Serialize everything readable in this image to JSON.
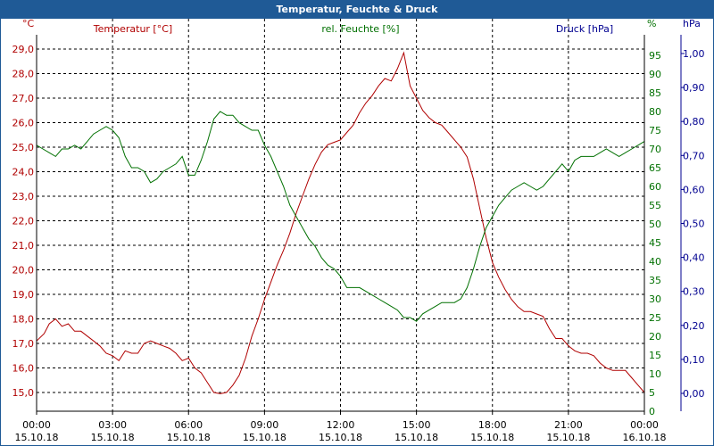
{
  "window": {
    "title": "Temperatur, Feuchte & Druck"
  },
  "chart_data": {
    "type": "line",
    "title": "Temperatur, Feuchte & Druck",
    "grid": true,
    "axes": {
      "left": {
        "label": "Temperatur [°C]",
        "unit": "°C",
        "range": [
          14.5,
          29.5
        ],
        "ticks": [
          "15,0",
          "16,0",
          "17,0",
          "18,0",
          "19,0",
          "20,0",
          "21,0",
          "22,0",
          "23,0",
          "24,0",
          "25,0",
          "26,0",
          "27,0",
          "28,0",
          "29,0"
        ],
        "tick_values": [
          15,
          16,
          17,
          18,
          19,
          20,
          21,
          22,
          23,
          24,
          25,
          26,
          27,
          28,
          29
        ],
        "color": "#b00000"
      },
      "right1": {
        "label": "rel. Feuchte [%]",
        "unit": "%",
        "range": [
          0,
          100
        ],
        "ticks": [
          "0",
          "5",
          "10",
          "15",
          "20",
          "25",
          "30",
          "35",
          "40",
          "45",
          "50",
          "55",
          "60",
          "65",
          "70",
          "75",
          "80",
          "85",
          "90",
          "95"
        ],
        "tick_values": [
          0,
          5,
          10,
          15,
          20,
          25,
          30,
          35,
          40,
          45,
          50,
          55,
          60,
          65,
          70,
          75,
          80,
          85,
          90,
          95
        ],
        "color": "#007000"
      },
      "right2": {
        "label": "Druck [hPa]",
        "unit": "hPa",
        "range": [
          -0.055,
          1.04
        ],
        "ticks": [
          "0,00",
          "0,10",
          "0,20",
          "0,30",
          "0,40",
          "0,50",
          "0,60",
          "0,70",
          "0,80",
          "0,90",
          "1,00"
        ],
        "tick_values": [
          0,
          0.1,
          0.2,
          0.3,
          0.4,
          0.5,
          0.6,
          0.7,
          0.8,
          0.9,
          1.0
        ],
        "color": "#000090"
      },
      "x": {
        "range_hours": [
          0,
          24
        ],
        "ticks": [
          {
            "h": 0,
            "time": "00:00",
            "date": "15.10.18"
          },
          {
            "h": 3,
            "time": "03:00",
            "date": "15.10.18"
          },
          {
            "h": 6,
            "time": "06:00",
            "date": "15.10.18"
          },
          {
            "h": 9,
            "time": "09:00",
            "date": "15.10.18"
          },
          {
            "h": 12,
            "time": "12:00",
            "date": "15.10.18"
          },
          {
            "h": 15,
            "time": "15:00",
            "date": "15.10.18"
          },
          {
            "h": 18,
            "time": "18:00",
            "date": "15.10.18"
          },
          {
            "h": 21,
            "time": "21:00",
            "date": "15.10.18"
          },
          {
            "h": 24,
            "time": "00:00",
            "date": "16.10.18"
          }
        ]
      }
    },
    "series": [
      {
        "name": "Temperatur [°C]",
        "axis": "left",
        "color": "#b00000",
        "x": [
          0,
          0.3,
          0.5,
          0.75,
          1.0,
          1.25,
          1.5,
          1.75,
          2.0,
          2.25,
          2.5,
          2.75,
          3.0,
          3.25,
          3.5,
          3.75,
          4.0,
          4.25,
          4.5,
          4.75,
          5.0,
          5.25,
          5.5,
          5.75,
          6.0,
          6.25,
          6.5,
          6.75,
          7.0,
          7.25,
          7.5,
          7.75,
          8.0,
          8.25,
          8.5,
          8.75,
          9.0,
          9.25,
          9.5,
          9.75,
          10.0,
          10.25,
          10.5,
          10.75,
          11.0,
          11.25,
          11.5,
          11.75,
          12.0,
          12.25,
          12.5,
          12.75,
          13.0,
          13.25,
          13.5,
          13.75,
          14.0,
          14.25,
          14.5,
          14.6,
          14.75,
          15.0,
          15.25,
          15.5,
          15.75,
          16.0,
          16.25,
          16.5,
          16.75,
          17.0,
          17.25,
          17.5,
          17.75,
          18.0,
          18.25,
          18.5,
          18.75,
          19.0,
          19.25,
          19.5,
          19.75,
          20.0,
          20.25,
          20.5,
          20.75,
          21.0,
          21.25,
          21.5,
          21.75,
          22.0,
          22.25,
          22.5,
          22.75,
          23.0,
          23.25,
          23.5,
          23.75,
          24.0
        ],
        "values": [
          17.1,
          17.4,
          17.8,
          18.0,
          17.7,
          17.8,
          17.5,
          17.5,
          17.3,
          17.1,
          16.9,
          16.6,
          16.5,
          16.3,
          16.7,
          16.6,
          16.6,
          17.0,
          17.1,
          17.0,
          16.9,
          16.8,
          16.6,
          16.3,
          16.4,
          16.0,
          15.8,
          15.4,
          15.0,
          14.95,
          15.0,
          15.3,
          15.7,
          16.4,
          17.3,
          18.0,
          18.8,
          19.5,
          20.2,
          20.8,
          21.5,
          22.3,
          23.0,
          23.7,
          24.3,
          24.8,
          25.1,
          25.2,
          25.3,
          25.6,
          25.9,
          26.4,
          26.8,
          27.1,
          27.5,
          27.8,
          27.7,
          28.2,
          28.85,
          28.3,
          27.5,
          27.0,
          26.5,
          26.2,
          26.0,
          25.9,
          25.6,
          25.3,
          25.0,
          24.6,
          23.7,
          22.5,
          21.3,
          20.3,
          19.7,
          19.2,
          18.8,
          18.5,
          18.3,
          18.3,
          18.2,
          18.1,
          17.6,
          17.2,
          17.2,
          16.9,
          16.7,
          16.6,
          16.6,
          16.5,
          16.2,
          16.0,
          15.9,
          15.9,
          15.9,
          15.6,
          15.3,
          15.0
        ]
      },
      {
        "name": "rel. Feuchte [%]",
        "axis": "right1",
        "color": "#007000",
        "x": [
          0,
          0.25,
          0.5,
          0.75,
          1.0,
          1.25,
          1.5,
          1.75,
          2.0,
          2.25,
          2.5,
          2.75,
          3.0,
          3.25,
          3.5,
          3.75,
          4.0,
          4.25,
          4.5,
          4.75,
          5.0,
          5.25,
          5.5,
          5.75,
          6.0,
          6.25,
          6.5,
          6.75,
          7.0,
          7.25,
          7.5,
          7.75,
          8.0,
          8.25,
          8.5,
          8.75,
          9.0,
          9.25,
          9.5,
          9.75,
          10.0,
          10.25,
          10.5,
          10.75,
          11.0,
          11.25,
          11.5,
          11.75,
          12.0,
          12.25,
          12.5,
          12.75,
          13.0,
          13.25,
          13.5,
          13.75,
          14.0,
          14.25,
          14.5,
          14.75,
          15.0,
          15.25,
          15.5,
          15.75,
          16.0,
          16.25,
          16.5,
          16.75,
          17.0,
          17.25,
          17.5,
          17.75,
          18.0,
          18.25,
          18.5,
          18.75,
          19.0,
          19.25,
          19.5,
          19.75,
          20.0,
          20.25,
          20.5,
          20.75,
          21.0,
          21.25,
          21.5,
          21.75,
          22.0,
          22.25,
          22.5,
          22.75,
          23.0,
          23.25,
          23.5,
          23.75,
          24.0
        ],
        "values": [
          71,
          70,
          69,
          68,
          70,
          70,
          71,
          70,
          72,
          74,
          75,
          76,
          75,
          73,
          68,
          65,
          65,
          64,
          61,
          62,
          64,
          65,
          66,
          68,
          63,
          63,
          67,
          72,
          78,
          80,
          79,
          79,
          77,
          76,
          75,
          75,
          71,
          68,
          64,
          60,
          55,
          52,
          49,
          46,
          44,
          41,
          39,
          38,
          36,
          33,
          33,
          33,
          32,
          31,
          30,
          29,
          28,
          27,
          25,
          25,
          24,
          26,
          27,
          28,
          29,
          29,
          29,
          30,
          33,
          38,
          44,
          49,
          52,
          55,
          57,
          59,
          60,
          61,
          60,
          59,
          60,
          62,
          64,
          66,
          64,
          67,
          68,
          68,
          68,
          69,
          70,
          69,
          68,
          69,
          70,
          71,
          72
        ]
      }
    ]
  }
}
